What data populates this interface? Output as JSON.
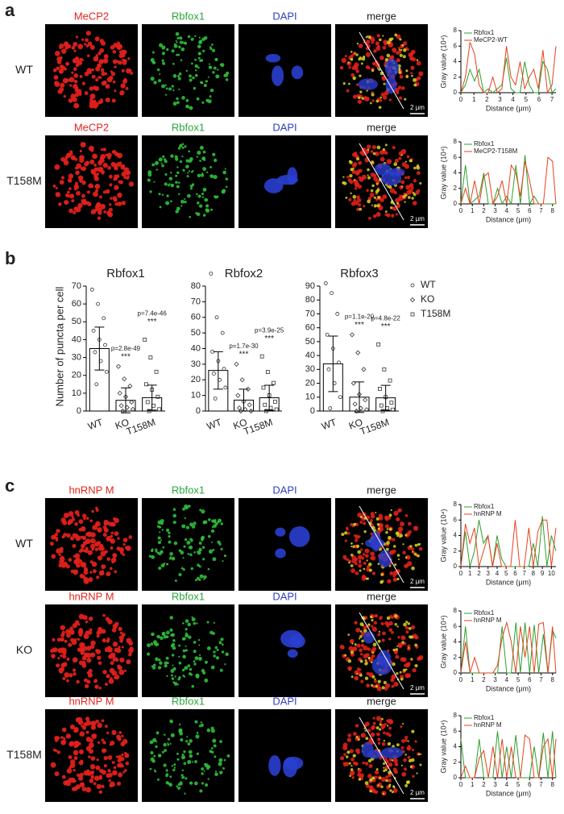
{
  "panel_a": {
    "label": "a",
    "rows": [
      {
        "label": "WT",
        "channels": [
          "MeCP2",
          "Rbfox1",
          "DAPI",
          "merge"
        ],
        "scale_bar": "2 µm",
        "profile": {
          "type": "line",
          "x_label": "Distance (μm)",
          "y_label": "Gray value (10⁴)",
          "x": [
            0,
            0.35,
            0.7,
            1.05,
            1.4,
            1.75,
            2.1,
            2.45,
            2.8,
            3.15,
            3.5,
            3.85,
            4.2,
            4.55,
            4.9,
            5.25,
            5.6,
            5.95,
            6.3,
            6.65,
            7.0,
            7.3
          ],
          "xlim": [
            0,
            7.3
          ],
          "xticks": [
            0,
            1,
            2,
            3,
            4,
            5,
            6,
            7
          ],
          "ylim": [
            0,
            8
          ],
          "yticks": [
            0,
            2,
            4,
            6,
            8
          ],
          "series": [
            {
              "name": "Rbfox1",
              "color": "#2ca02c",
              "values": [
                0,
                1,
                3,
                1.5,
                3,
                0,
                0.5,
                0,
                0.5,
                1,
                4.5,
                0.5,
                0,
                0,
                4,
                1,
                0,
                0,
                4,
                3,
                0,
                0.5
              ]
            },
            {
              "name": "MeCP2-WT",
              "color": "#e8401c",
              "values": [
                0,
                2,
                6.5,
                5,
                1,
                0,
                0,
                2,
                0,
                0.5,
                6,
                2,
                1,
                4,
                0.5,
                2,
                3,
                0.5,
                5.5,
                0,
                1,
                6
              ]
            }
          ]
        }
      },
      {
        "label": "T158M",
        "channels": [
          "MeCP2",
          "Rbfox1",
          "DAPI",
          "merge"
        ],
        "scale_bar": "2 µm",
        "profile": {
          "type": "line",
          "x_label": "Distance (μm)",
          "y_label": "Gray value (10⁴)",
          "x": [
            0,
            0.4,
            0.8,
            1.2,
            1.6,
            2,
            2.4,
            2.8,
            3.2,
            3.6,
            4,
            4.4,
            4.8,
            5.2,
            5.6,
            6,
            6.4,
            6.8,
            7.2,
            7.6,
            8,
            8.3
          ],
          "xlim": [
            0,
            8.3
          ],
          "xticks": [
            0,
            1,
            2,
            3,
            4,
            5,
            6,
            7,
            8
          ],
          "ylim": [
            0,
            8
          ],
          "yticks": [
            0,
            2,
            4,
            6,
            8
          ],
          "series": [
            {
              "name": "Rbfox1",
              "color": "#2ca02c",
              "values": [
                0,
                5,
                0,
                0.5,
                1,
                4,
                0,
                0,
                2,
                0,
                1,
                0,
                5,
                0,
                6.3,
                0,
                1,
                0,
                0,
                0,
                0,
                0
              ]
            },
            {
              "name": "MeCP2-T158M",
              "color": "#e8401c",
              "values": [
                0,
                2,
                0,
                3,
                0,
                3.5,
                4,
                0,
                1,
                3,
                0,
                5,
                4,
                1,
                5.5,
                3,
                0,
                0,
                0,
                6,
                5.5,
                0
              ]
            }
          ]
        }
      }
    ]
  },
  "panel_b": {
    "label": "b",
    "y_label": "Number of puncta per cell",
    "legend": {
      "names": [
        "WT",
        "KO",
        "T158M"
      ],
      "markers": [
        "circle",
        "diamond",
        "square"
      ]
    },
    "charts": [
      {
        "type": "bar",
        "title": "Rbfox1",
        "categories": [
          "WT",
          "KO",
          "T158M"
        ],
        "values": [
          35,
          6,
          7.5
        ],
        "errors": [
          12,
          7,
          7
        ],
        "points": [
          [
            68,
            60,
            52,
            45,
            40,
            37,
            33,
            28,
            22,
            15
          ],
          [
            25,
            18,
            14,
            10,
            8,
            5,
            3,
            2,
            1,
            0
          ],
          [
            40,
            30,
            22,
            15,
            12,
            8,
            5,
            3,
            1,
            0
          ]
        ],
        "p_labels": [
          null,
          "p=2.8e-49",
          "p=7.4e-46"
        ],
        "stars": [
          null,
          "***",
          "***"
        ],
        "ylim": [
          0,
          70
        ],
        "yticks": [
          0,
          10,
          20,
          30,
          40,
          50,
          60,
          70
        ]
      },
      {
        "type": "bar",
        "title": "Rbfox2",
        "categories": [
          "WT",
          "KO",
          "T158M"
        ],
        "values": [
          26,
          7,
          8.5
        ],
        "errors": [
          12,
          7,
          8
        ],
        "points": [
          [
            88,
            60,
            50,
            38,
            32,
            27,
            24,
            20,
            15,
            8
          ],
          [
            30,
            20,
            14,
            10,
            6,
            4,
            2,
            1,
            0,
            0
          ],
          [
            35,
            25,
            18,
            15,
            10,
            6,
            4,
            2,
            1,
            0
          ]
        ],
        "p_labels": [
          null,
          "p=1.7e-30",
          "p=3.9e-25"
        ],
        "stars": [
          null,
          "***",
          "***"
        ],
        "ylim": [
          0,
          80
        ],
        "yticks": [
          0,
          10,
          20,
          30,
          40,
          50,
          60,
          70,
          80
        ]
      },
      {
        "type": "bar",
        "title": "Rbfox3",
        "categories": [
          "WT",
          "KO",
          "T158M"
        ],
        "values": [
          34,
          10,
          9.5
        ],
        "errors": [
          20,
          11,
          9
        ],
        "points": [
          [
            92,
            85,
            70,
            55,
            45,
            35,
            30,
            20,
            10,
            2
          ],
          [
            55,
            42,
            30,
            20,
            12,
            8,
            5,
            2,
            1,
            0
          ],
          [
            48,
            30,
            22,
            16,
            10,
            6,
            4,
            2,
            1,
            0
          ]
        ],
        "p_labels": [
          null,
          "p=1.1e-20",
          "p=4.8e-22"
        ],
        "stars": [
          null,
          "***",
          "***"
        ],
        "ylim": [
          0,
          90
        ],
        "yticks": [
          0,
          10,
          20,
          30,
          40,
          50,
          60,
          70,
          80,
          90
        ]
      }
    ]
  },
  "panel_c": {
    "label": "c",
    "rows": [
      {
        "label": "WT",
        "channels": [
          "hnRNP M",
          "Rbfox1",
          "DAPI",
          "merge"
        ],
        "scale_bar": "2 µm",
        "profile": {
          "type": "line",
          "x_label": "Distance (μm)",
          "y_label": "Gray value (10⁴)",
          "x": [
            0,
            0.5,
            1,
            1.5,
            2,
            2.5,
            3,
            3.5,
            4,
            4.5,
            5,
            5.5,
            6,
            6.5,
            7,
            7.5,
            8,
            8.5,
            9,
            9.5,
            10,
            10.5
          ],
          "xlim": [
            0,
            10.5
          ],
          "xticks": [
            0,
            1,
            2,
            3,
            4,
            5,
            6,
            7,
            8,
            9,
            10
          ],
          "ylim": [
            0,
            8
          ],
          "yticks": [
            0,
            2,
            4,
            6,
            8
          ],
          "series": [
            {
              "name": "Rbfox1",
              "color": "#2ca02c",
              "values": [
                0,
                4.5,
                0,
                2,
                6,
                3,
                4,
                0,
                4,
                1,
                0,
                0,
                0,
                0,
                0,
                0,
                3,
                0,
                6.5,
                0,
                4,
                2
              ]
            },
            {
              "name": "hnRNP M",
              "color": "#e8401c",
              "values": [
                0,
                5.5,
                3,
                5,
                0,
                2,
                4,
                0,
                3,
                0,
                0,
                0,
                6,
                0,
                0,
                5,
                0,
                4.5,
                6,
                6,
                0,
                5
              ]
            }
          ]
        }
      },
      {
        "label": "KO",
        "channels": [
          "hnRNP M",
          "Rbfox1",
          "DAPI",
          "merge"
        ],
        "scale_bar": "2 µm",
        "profile": {
          "type": "line",
          "x_label": "Distance (μm)",
          "y_label": "Gray value (10⁴)",
          "x": [
            0,
            0.4,
            0.8,
            1.2,
            1.6,
            2,
            2.4,
            2.8,
            3.2,
            3.6,
            4,
            4.4,
            4.8,
            5.2,
            5.6,
            6,
            6.4,
            6.8,
            7.2,
            7.6,
            8,
            8.3
          ],
          "xlim": [
            0,
            8.3
          ],
          "xticks": [
            0,
            1,
            2,
            3,
            4,
            5,
            6,
            7,
            8
          ],
          "ylim": [
            0,
            8
          ],
          "yticks": [
            0,
            2,
            4,
            6,
            8
          ],
          "series": [
            {
              "name": "Rbfox1",
              "color": "#2ca02c",
              "values": [
                0,
                6,
                0,
                0,
                0,
                0,
                0,
                0,
                0,
                6,
                0,
                0,
                6.5,
                0,
                6.5,
                0,
                6.2,
                0,
                5,
                0,
                5.5,
                4.5
              ]
            },
            {
              "name": "hnRNP M",
              "color": "#e8401c",
              "values": [
                0,
                4,
                0,
                2,
                0,
                0,
                0,
                0,
                1,
                4.5,
                6.5,
                4,
                0,
                6,
                2,
                6,
                0,
                6.3,
                6.5,
                0,
                6,
                0
              ]
            }
          ]
        }
      },
      {
        "label": "T158M",
        "channels": [
          "hnRNP M",
          "Rbfox1",
          "DAPI",
          "merge"
        ],
        "scale_bar": "2 µm",
        "profile": {
          "type": "line",
          "x_label": "Distance (μm)",
          "y_label": "Gray value (10⁴)",
          "x": [
            0,
            0.4,
            0.8,
            1.2,
            1.6,
            2,
            2.4,
            2.8,
            3.2,
            3.6,
            4,
            4.4,
            4.8,
            5.2,
            5.6,
            6,
            6.4,
            6.8,
            7.2,
            7.6,
            8,
            8.3
          ],
          "xlim": [
            0,
            8.3
          ],
          "xticks": [
            0,
            1,
            2,
            3,
            4,
            5,
            6,
            7,
            8
          ],
          "ylim": [
            0,
            8
          ],
          "yticks": [
            0,
            2,
            4,
            6,
            8
          ],
          "series": [
            {
              "name": "Rbfox1",
              "color": "#2ca02c",
              "values": [
                5,
                0,
                0,
                0,
                5,
                0,
                0,
                0,
                6,
                0,
                4,
                0,
                5.5,
                0,
                0,
                0,
                4,
                0,
                5.8,
                0,
                6,
                0
              ]
            },
            {
              "name": "hnRNP M",
              "color": "#e8401c",
              "values": [
                0,
                1.5,
                0,
                0,
                2.5,
                3.5,
                0,
                4,
                0,
                5,
                0,
                4,
                0,
                0,
                5.5,
                5,
                0,
                0,
                4,
                5,
                0,
                5
              ]
            }
          ]
        }
      }
    ]
  },
  "channel_colors": [
    "#e3261e",
    "#2aa63a",
    "#2d3fc4",
    "#222222"
  ]
}
